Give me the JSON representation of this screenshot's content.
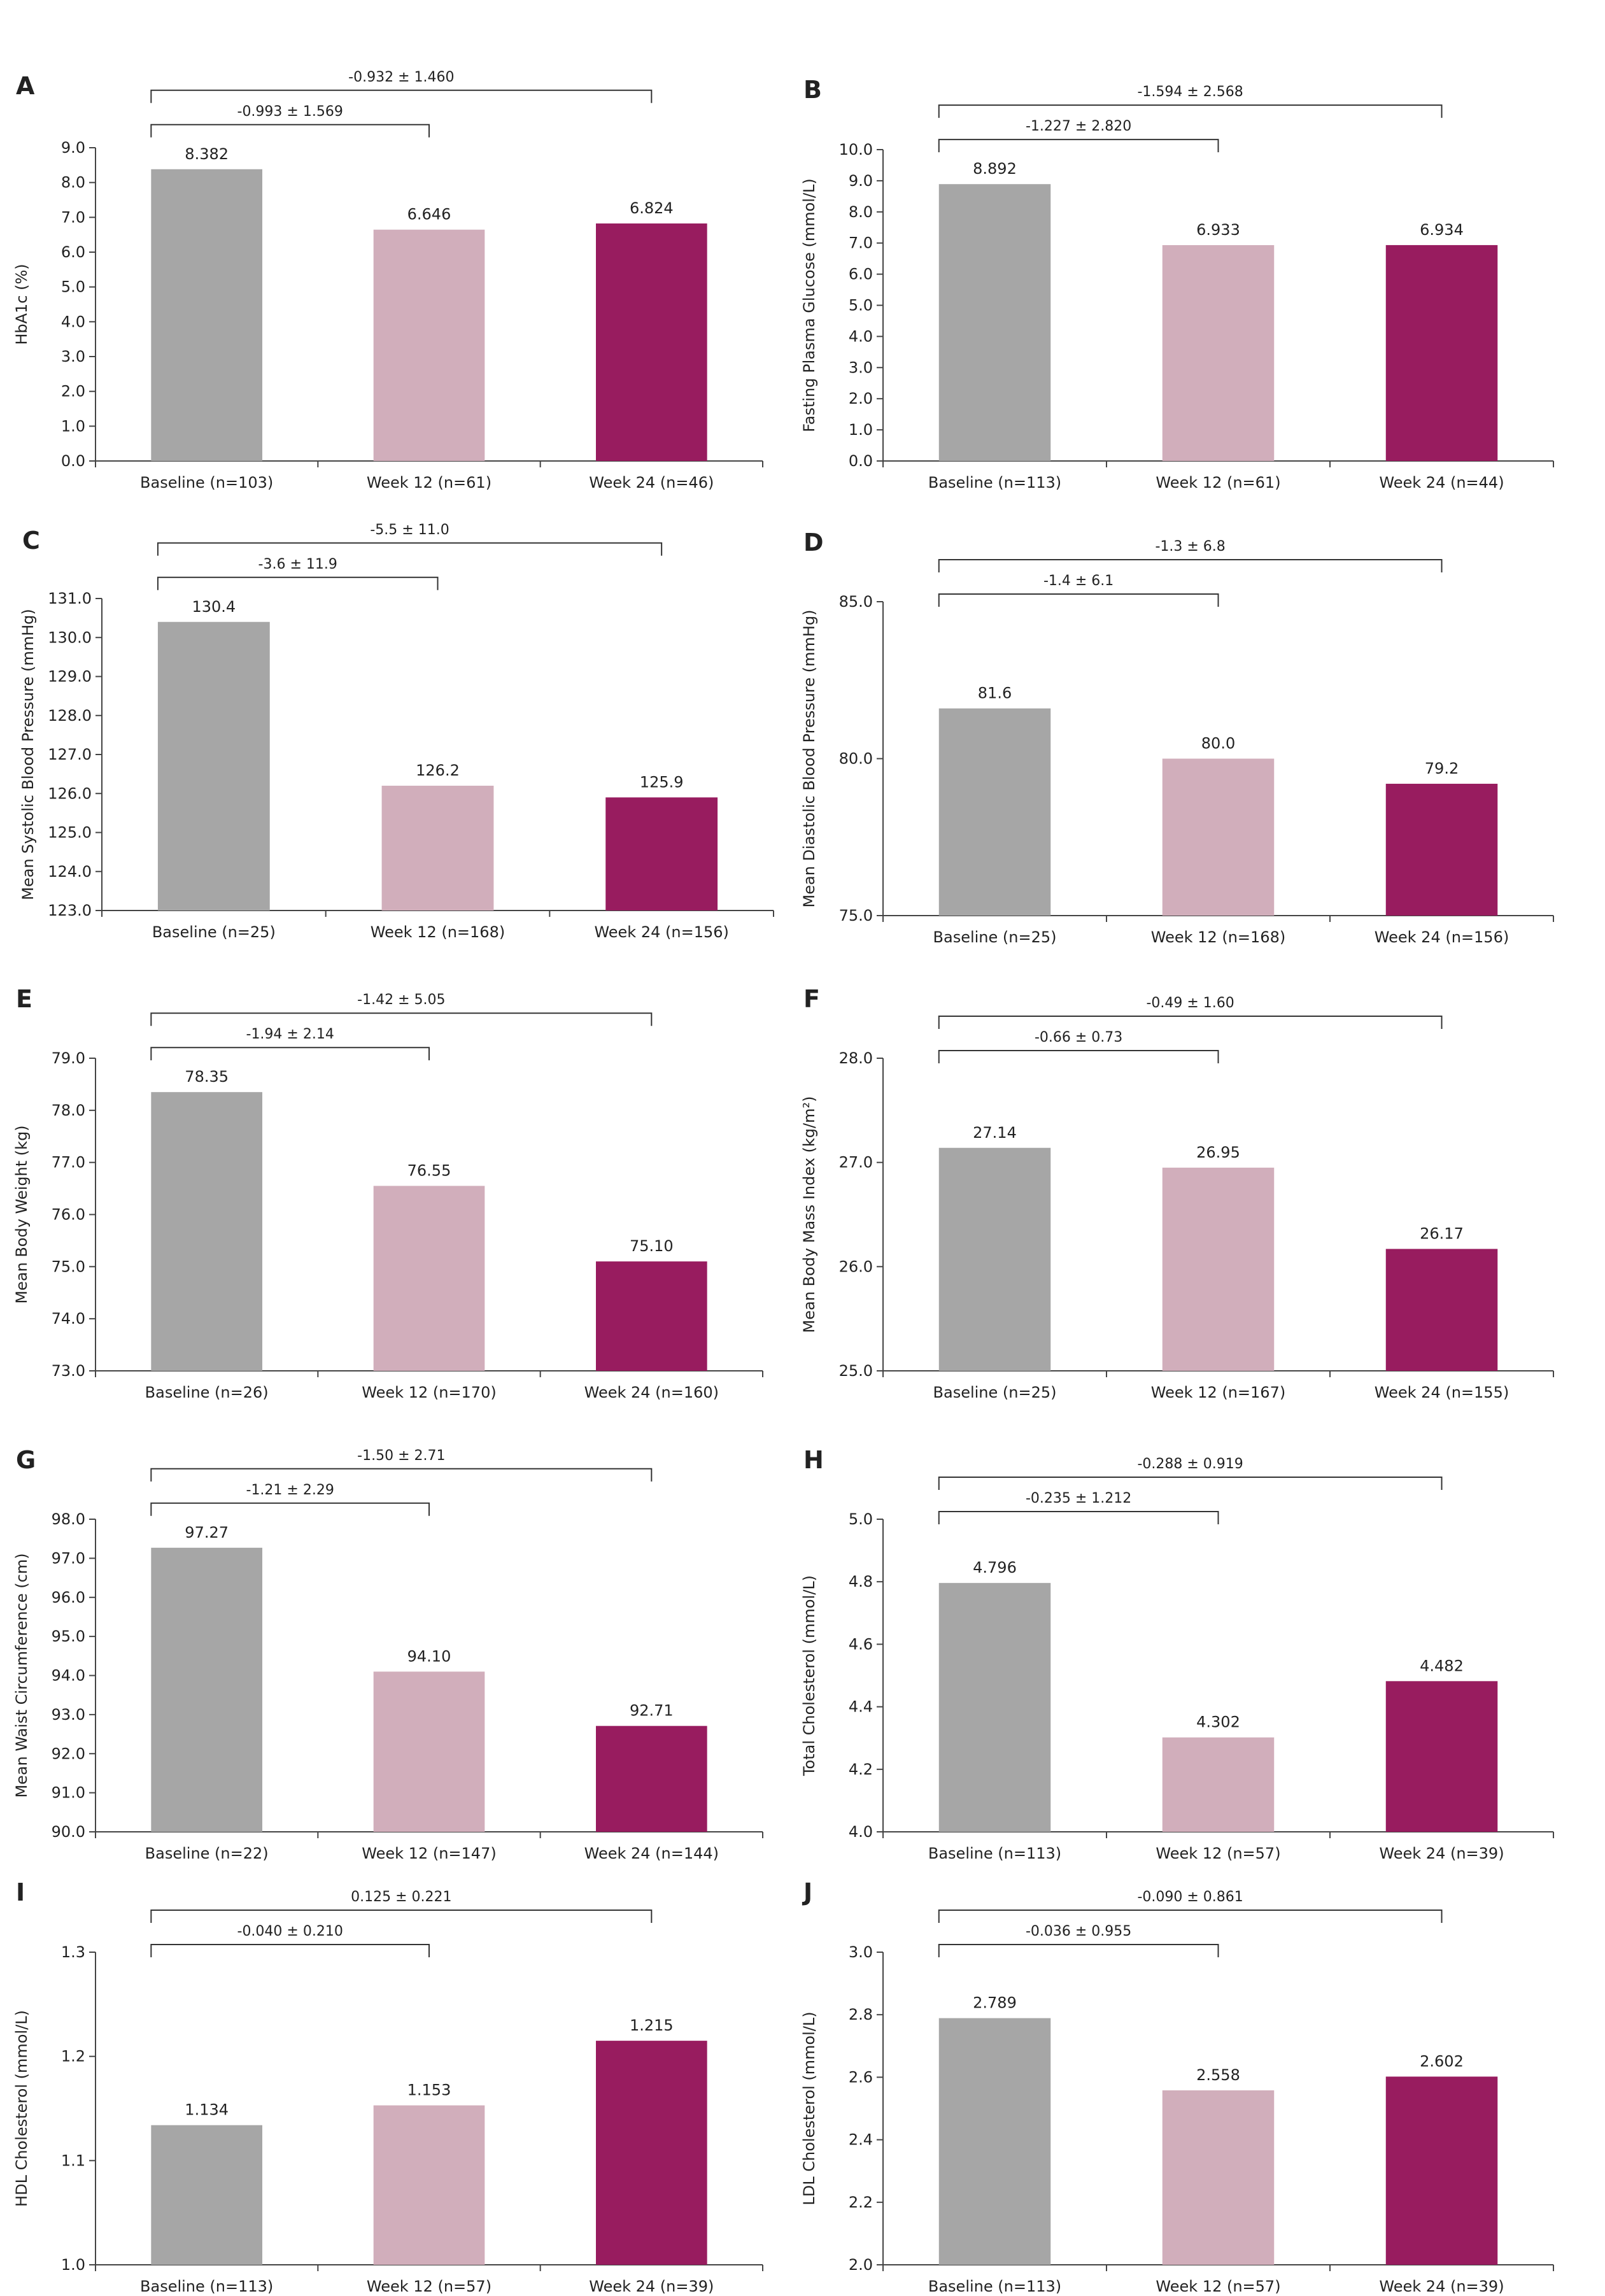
{
  "colors": {
    "baseline": "#a6a6a6",
    "week12": "#d1aebb",
    "week24": "#981c5f"
  },
  "chart_data": [
    {
      "type": "bar",
      "letter": "A",
      "ylabel": "HbA1c (%)",
      "ylim": [
        0,
        9
      ],
      "ticks": [
        "0.0",
        "1.0",
        "2.0",
        "3.0",
        "4.0",
        "5.0",
        "6.0",
        "7.0",
        "8.0",
        "9.0"
      ],
      "categories": [
        "Baseline (n=103)",
        "Week 12 (n=61)",
        "Week 24 (n=46)"
      ],
      "values": [
        8.382,
        6.646,
        6.824
      ],
      "value_labels": [
        "8.382",
        "6.646",
        "6.824"
      ],
      "comparisons": [
        {
          "label": "-0.993 ± 1.569",
          "from": 0,
          "to": 1
        },
        {
          "label": "-0.932 ± 1.460",
          "from": 0,
          "to": 2
        }
      ]
    },
    {
      "type": "bar",
      "letter": "B",
      "ylabel": "Fasting Plasma Glucose (mmol/L)",
      "ylim": [
        0,
        10
      ],
      "ticks": [
        "0.0",
        "1.0",
        "2.0",
        "3.0",
        "4.0",
        "5.0",
        "6.0",
        "7.0",
        "8.0",
        "9.0",
        "10.0"
      ],
      "categories": [
        "Baseline (n=113)",
        "Week 12 (n=61)",
        "Week 24 (n=44)"
      ],
      "values": [
        8.892,
        6.933,
        6.934
      ],
      "value_labels": [
        "8.892",
        "6.933",
        "6.934"
      ],
      "comparisons": [
        {
          "label": "-1.227 ± 2.820",
          "from": 0,
          "to": 1
        },
        {
          "label": "-1.594 ± 2.568",
          "from": 0,
          "to": 2
        }
      ]
    },
    {
      "type": "bar",
      "letter": "C",
      "ylabel": "Mean Systolic Blood Pressure (mmHg)",
      "ylim": [
        123,
        131
      ],
      "ticks": [
        "123.0",
        "124.0",
        "125.0",
        "126.0",
        "127.0",
        "128.0",
        "129.0",
        "130.0",
        "131.0"
      ],
      "categories": [
        "Baseline (n=25)",
        "Week 12 (n=168)",
        "Week 24 (n=156)"
      ],
      "values": [
        130.4,
        126.2,
        125.9
      ],
      "value_labels": [
        "130.4",
        "126.2",
        "125.9"
      ],
      "comparisons": [
        {
          "label": "-3.6 ± 11.9",
          "from": 0,
          "to": 1
        },
        {
          "label": "-5.5 ± 11.0",
          "from": 0,
          "to": 2
        }
      ]
    },
    {
      "type": "bar",
      "letter": "D",
      "ylabel": "Mean Diastolic Blood Pressure (mmHg)",
      "ylim": [
        75,
        85
      ],
      "ticks": [
        "75.0",
        "80.0",
        "85.0"
      ],
      "categories": [
        "Baseline (n=25)",
        "Week 12 (n=168)",
        "Week 24 (n=156)"
      ],
      "values": [
        81.6,
        80.0,
        79.2
      ],
      "value_labels": [
        "81.6",
        "80.0",
        "79.2"
      ],
      "comparisons": [
        {
          "label": "-1.4 ± 6.1",
          "from": 0,
          "to": 1
        },
        {
          "label": "-1.3 ± 6.8",
          "from": 0,
          "to": 2
        }
      ]
    },
    {
      "type": "bar",
      "letter": "E",
      "ylabel": "Mean Body Weight (kg)",
      "ylim": [
        73,
        79
      ],
      "ticks": [
        "73.0",
        "74.0",
        "75.0",
        "76.0",
        "77.0",
        "78.0",
        "79.0"
      ],
      "categories": [
        "Baseline (n=26)",
        "Week 12 (n=170)",
        "Week 24 (n=160)"
      ],
      "values": [
        78.35,
        76.55,
        75.1
      ],
      "value_labels": [
        "78.35",
        "76.55",
        "75.10"
      ],
      "comparisons": [
        {
          "label": "-1.94 ± 2.14",
          "from": 0,
          "to": 1
        },
        {
          "label": "-1.42 ± 5.05",
          "from": 0,
          "to": 2
        }
      ]
    },
    {
      "type": "bar",
      "letter": "F",
      "ylabel": "Mean Body Mass Index (kg/m²)",
      "ylim": [
        25,
        28
      ],
      "ticks": [
        "25.0",
        "26.0",
        "27.0",
        "28.0"
      ],
      "categories": [
        "Baseline (n=25)",
        "Week 12 (n=167)",
        "Week 24 (n=155)"
      ],
      "values": [
        27.14,
        26.95,
        26.17
      ],
      "value_labels": [
        "27.14",
        "26.95",
        "26.17"
      ],
      "comparisons": [
        {
          "label": "-0.66 ± 0.73",
          "from": 0,
          "to": 1
        },
        {
          "label": "-0.49 ± 1.60",
          "from": 0,
          "to": 2
        }
      ]
    },
    {
      "type": "bar",
      "letter": "G",
      "ylabel": "Mean Waist Circumference (cm)",
      "ylim": [
        90,
        98
      ],
      "ticks": [
        "90.0",
        "91.0",
        "92.0",
        "93.0",
        "94.0",
        "95.0",
        "96.0",
        "97.0",
        "98.0"
      ],
      "categories": [
        "Baseline (n=22)",
        "Week 12 (n=147)",
        "Week 24 (n=144)"
      ],
      "values": [
        97.27,
        94.1,
        92.71
      ],
      "value_labels": [
        "97.27",
        "94.10",
        "92.71"
      ],
      "comparisons": [
        {
          "label": "-1.21 ± 2.29",
          "from": 0,
          "to": 1
        },
        {
          "label": "-1.50 ± 2.71",
          "from": 0,
          "to": 2
        }
      ]
    },
    {
      "type": "bar",
      "letter": "H",
      "ylabel": "Total Cholesterol (mmol/L)",
      "ylim": [
        4.0,
        5.0
      ],
      "ticks": [
        "4.0",
        "4.2",
        "4.4",
        "4.6",
        "4.8",
        "5.0"
      ],
      "categories": [
        "Baseline (n=113)",
        "Week 12 (n=57)",
        "Week 24 (n=39)"
      ],
      "values": [
        4.796,
        4.302,
        4.482
      ],
      "value_labels": [
        "4.796",
        "4.302",
        "4.482"
      ],
      "comparisons": [
        {
          "label": "-0.235 ± 1.212",
          "from": 0,
          "to": 1
        },
        {
          "label": "-0.288 ± 0.919",
          "from": 0,
          "to": 2
        }
      ]
    },
    {
      "type": "bar",
      "letter": "I",
      "ylabel": "HDL Cholesterol (mmol/L)",
      "ylim": [
        1.0,
        1.3
      ],
      "ticks": [
        "1.0",
        "1.1",
        "1.2",
        "1.3"
      ],
      "categories": [
        "Baseline (n=113)",
        "Week 12 (n=57)",
        "Week 24 (n=39)"
      ],
      "values": [
        1.134,
        1.153,
        1.215
      ],
      "value_labels": [
        "1.134",
        "1.153",
        "1.215"
      ],
      "comparisons": [
        {
          "label": "-0.040 ± 0.210",
          "from": 0,
          "to": 1
        },
        {
          "label": "0.125 ± 0.221",
          "from": 0,
          "to": 2
        }
      ]
    },
    {
      "type": "bar",
      "letter": "J",
      "ylabel": "LDL Cholesterol (mmol/L)",
      "ylim": [
        2.0,
        3.0
      ],
      "ticks": [
        "2.0",
        "2.2",
        "2.4",
        "2.6",
        "2.8",
        "3.0"
      ],
      "categories": [
        "Baseline (n=113)",
        "Week 12 (n=57)",
        "Week 24 (n=39)"
      ],
      "values": [
        2.789,
        2.558,
        2.602
      ],
      "value_labels": [
        "2.789",
        "2.558",
        "2.602"
      ],
      "comparisons": [
        {
          "label": "-0.036 ± 0.955",
          "from": 0,
          "to": 1
        },
        {
          "label": "-0.090 ± 0.861",
          "from": 0,
          "to": 2
        }
      ]
    }
  ]
}
